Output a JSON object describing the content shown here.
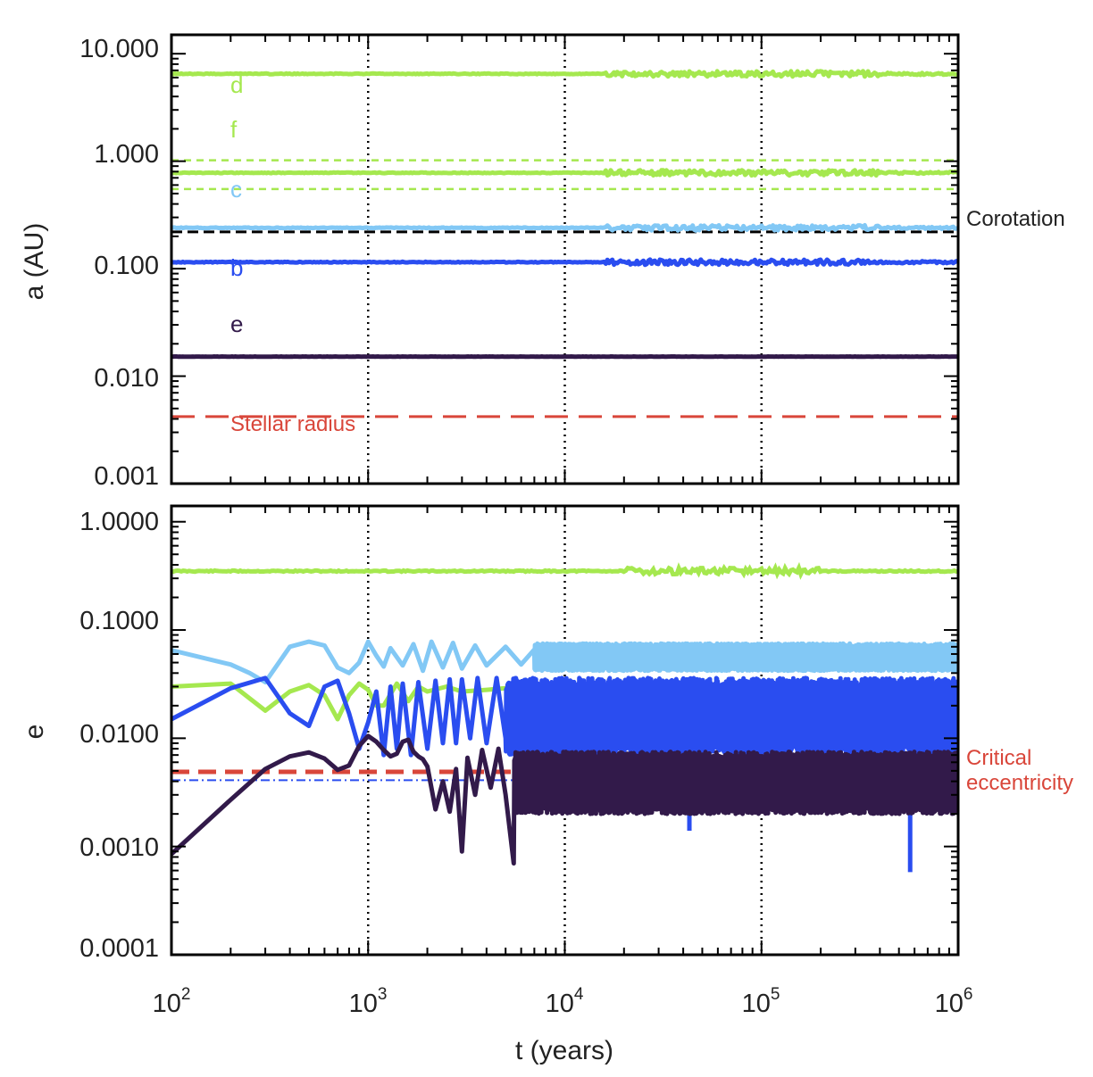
{
  "colors": {
    "green": "#a5e84f",
    "light_blue": "#82c8f5",
    "blue": "#2a4df0",
    "purple": "#321a4a",
    "red": "#d9463a",
    "black": "#000000"
  },
  "chart_data": [
    {
      "type": "line",
      "ylabel": "a (AU)",
      "xscale": "log",
      "yscale": "log",
      "xlim": [
        100,
        1000000
      ],
      "ylim": [
        0.001,
        15
      ],
      "yticks": [
        "10.000",
        "1.000",
        "0.100",
        "0.010",
        "0.001"
      ],
      "vertical_dotted_lines_x": [
        1000,
        10000,
        100000
      ],
      "series": [
        {
          "name": "d",
          "color": "#a5e84f",
          "style": "solid",
          "y": 6.5
        },
        {
          "name": "f",
          "color": "#a5e84f",
          "style": "solid",
          "y": 0.78,
          "bounds_dashed": [
            1.02,
            0.55
          ]
        },
        {
          "name": "c",
          "color": "#82c8f5",
          "style": "solid",
          "y": 0.24
        },
        {
          "name": "b",
          "color": "#2a4df0",
          "style": "solid",
          "y": 0.115
        },
        {
          "name": "e",
          "color": "#321a4a",
          "style": "solid",
          "y": 0.0152
        }
      ],
      "reference_lines": [
        {
          "name": "Corotation",
          "color": "#000000",
          "style": "dashed",
          "y": 0.22
        },
        {
          "name": "Stellar radius",
          "color": "#d9463a",
          "style": "dashed",
          "y": 0.0042
        }
      ]
    },
    {
      "type": "line",
      "xlabel": "t (years)",
      "ylabel": "e",
      "xscale": "log",
      "yscale": "log",
      "xlim": [
        100,
        1000000
      ],
      "ylim": [
        0.0001,
        1.4
      ],
      "xticks": [
        "10^2",
        "10^3",
        "10^4",
        "10^5",
        "10^6"
      ],
      "yticks": [
        "1.0000",
        "0.1000",
        "0.0100",
        "0.0010",
        "0.0001"
      ],
      "vertical_dotted_lines_x": [
        1000,
        10000,
        100000
      ],
      "series": [
        {
          "name": "green",
          "color": "#a5e84f",
          "x": [
            100,
            200,
            300,
            400,
            500,
            600,
            700,
            800,
            900,
            1000,
            1100,
            1200,
            1400,
            1600,
            1800,
            2000,
            2500,
            3000,
            4000,
            5000
          ],
          "y": [
            0.03,
            0.032,
            0.018,
            0.027,
            0.031,
            0.025,
            0.015,
            0.025,
            0.032,
            0.028,
            0.02,
            0.02,
            0.032,
            0.022,
            0.03,
            0.027,
            0.03,
            0.027,
            0.028,
            0.029
          ],
          "steady_y": 0.35
        },
        {
          "name": "light_blue",
          "color": "#82c8f5",
          "x": [
            100,
            200,
            250,
            300,
            400,
            500,
            600,
            700,
            800,
            900,
            1000,
            1100,
            1200,
            1300,
            1500,
            1700,
            1900,
            2100,
            2400,
            2700,
            3000,
            3500,
            4000,
            5000,
            6000,
            7000
          ],
          "y": [
            0.065,
            0.048,
            0.04,
            0.033,
            0.07,
            0.078,
            0.072,
            0.045,
            0.04,
            0.05,
            0.078,
            0.058,
            0.046,
            0.068,
            0.047,
            0.074,
            0.042,
            0.078,
            0.045,
            0.076,
            0.044,
            0.072,
            0.047,
            0.07,
            0.048,
            0.066
          ],
          "band": [
            0.042,
            0.075
          ]
        },
        {
          "name": "blue",
          "color": "#2a4df0",
          "x": [
            100,
            200,
            300,
            400,
            500,
            600,
            700,
            800,
            900,
            1000,
            1100,
            1200,
            1300,
            1400,
            1500,
            1650,
            1800,
            2000,
            2200,
            2400,
            2600,
            2800,
            3000,
            3300,
            3600,
            4000,
            4500,
            5000
          ],
          "y": [
            0.015,
            0.029,
            0.036,
            0.017,
            0.013,
            0.03,
            0.034,
            0.017,
            0.008,
            0.014,
            0.027,
            0.007,
            0.03,
            0.008,
            0.032,
            0.007,
            0.033,
            0.008,
            0.034,
            0.009,
            0.035,
            0.009,
            0.035,
            0.01,
            0.036,
            0.009,
            0.036,
            0.01
          ],
          "band": [
            0.007,
            0.036
          ]
        },
        {
          "name": "purple",
          "color": "#321a4a",
          "x": [
            100,
            200,
            300,
            400,
            500,
            600,
            700,
            800,
            900,
            1000,
            1100,
            1200,
            1300,
            1400,
            1500,
            1600,
            1700,
            1800,
            1900,
            2000,
            2200,
            2400,
            2600,
            2800,
            3000,
            3200,
            3500,
            3800,
            4200,
            4600,
            5000,
            5500
          ],
          "y": [
            0.00085,
            0.0027,
            0.0052,
            0.0068,
            0.0074,
            0.0065,
            0.0051,
            0.0056,
            0.0085,
            0.0105,
            0.0093,
            0.0078,
            0.0068,
            0.0072,
            0.0093,
            0.0097,
            0.0075,
            0.0068,
            0.0064,
            0.0055,
            0.0022,
            0.004,
            0.0021,
            0.0052,
            0.0009,
            0.0066,
            0.003,
            0.0078,
            0.0035,
            0.008,
            0.003,
            0.0007
          ],
          "band": [
            0.002,
            0.0075
          ]
        }
      ],
      "dips": [
        {
          "series": "blue",
          "x": 43000,
          "y": 0.0014
        },
        {
          "series": "blue",
          "x": 570000,
          "y": 0.00058
        },
        {
          "series": "blue",
          "x": 700000,
          "y": 0.0025
        }
      ],
      "reference_lines": [
        {
          "name": "Critical eccentricity",
          "color": "#d9463a",
          "style": "dashed",
          "y": 0.0049
        },
        {
          "name": "",
          "color": "#2a4df0",
          "style": "dash-dot",
          "y": 0.0041
        }
      ]
    }
  ],
  "labels": {
    "d": "d",
    "f": "f",
    "c": "c",
    "b": "b",
    "e": "e",
    "corotation": "Corotation",
    "stellar_radius": "Stellar radius",
    "critical_1": "Critical",
    "critical_2": "eccentricity",
    "top_ylabel": "a (AU)",
    "bottom_ylabel": "e",
    "xlabel": "t (years)",
    "xtick_base": "10",
    "xtick_exps": [
      "2",
      "3",
      "4",
      "5",
      "6"
    ]
  }
}
